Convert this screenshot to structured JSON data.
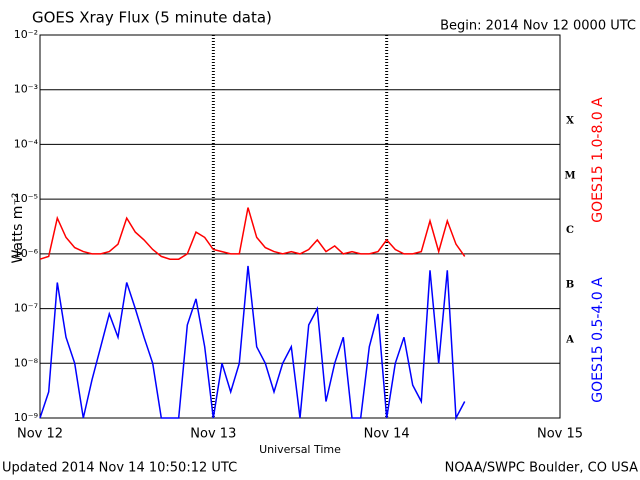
{
  "chart_data": {
    "type": "line",
    "title": "GOES Xray Flux (5 minute data)",
    "subtitle": "Begin:  2014 Nov 12 0000 UTC",
    "y_label": "Watts m⁻²",
    "x_label": "Universal Time",
    "footer_left": "Updated 2014 Nov 14 10:50:12 UTC",
    "footer_right": "NOAA/SWPC Boulder, CO USA",
    "log_y": true,
    "grid": true,
    "xlim": [
      0,
      3
    ],
    "xticks": [
      {
        "value": 0,
        "label": "Nov 12"
      },
      {
        "value": 1,
        "label": "Nov 13"
      },
      {
        "value": 2,
        "label": "Nov 14"
      },
      {
        "value": 3,
        "label": "Nov 15"
      }
    ],
    "ylim": [
      1e-09,
      0.01
    ],
    "yticks": [
      {
        "value": 1e-09,
        "label": "10⁻⁹"
      },
      {
        "value": 1e-08,
        "label": "10⁻⁸"
      },
      {
        "value": 1e-07,
        "label": "10⁻⁷"
      },
      {
        "value": 1e-06,
        "label": "10⁻⁶"
      },
      {
        "value": 1e-05,
        "label": "10⁻⁵"
      },
      {
        "value": 0.0001,
        "label": "10⁻⁴"
      },
      {
        "value": 0.001,
        "label": "10⁻³"
      },
      {
        "value": 0.01,
        "label": "10⁻²"
      }
    ],
    "flux_classes": [
      {
        "label": "A",
        "value": 1e-08
      },
      {
        "label": "B",
        "value": 1e-07
      },
      {
        "label": "C",
        "value": 1e-06
      },
      {
        "label": "M",
        "value": 1e-05
      },
      {
        "label": "X",
        "value": 0.0001
      }
    ],
    "x": [
      0,
      0.05,
      0.1,
      0.15,
      0.2,
      0.25,
      0.3,
      0.35,
      0.4,
      0.45,
      0.5,
      0.55,
      0.6,
      0.65,
      0.7,
      0.75,
      0.8,
      0.85,
      0.9,
      0.95,
      1,
      1.05,
      1.1,
      1.15,
      1.2,
      1.25,
      1.3,
      1.35,
      1.4,
      1.45,
      1.5,
      1.55,
      1.6,
      1.65,
      1.7,
      1.75,
      1.8,
      1.85,
      1.9,
      1.95,
      2,
      2.05,
      2.1,
      2.15,
      2.2,
      2.25,
      2.3,
      2.35,
      2.4,
      2.45
    ],
    "series": [
      {
        "name": "GOES15 1.0-8.0 A",
        "color": "#ff0000",
        "values": [
          8e-07,
          9e-07,
          4.5e-06,
          2e-06,
          1.3e-06,
          1.1e-06,
          1e-06,
          1e-06,
          1.1e-06,
          1.5e-06,
          4.5e-06,
          2.5e-06,
          1.8e-06,
          1.2e-06,
          9e-07,
          8e-07,
          8e-07,
          1e-06,
          2.5e-06,
          2e-06,
          1.2e-06,
          1.1e-06,
          1e-06,
          1e-06,
          7e-06,
          2e-06,
          1.3e-06,
          1.1e-06,
          1e-06,
          1.1e-06,
          1e-06,
          1.2e-06,
          1.8e-06,
          1.1e-06,
          1.4e-06,
          1e-06,
          1.1e-06,
          1e-06,
          1e-06,
          1.1e-06,
          1.8e-06,
          1.2e-06,
          1e-06,
          1e-06,
          1.1e-06,
          4e-06,
          1.1e-06,
          4e-06,
          1.5e-06,
          9e-07
        ]
      },
      {
        "name": "GOES15 0.5-4.0 A",
        "color": "#0000ff",
        "values": [
          1e-09,
          3e-09,
          3e-07,
          3e-08,
          1e-08,
          1e-09,
          5e-09,
          2e-08,
          8e-08,
          3e-08,
          3e-07,
          1e-07,
          3e-08,
          1e-08,
          1e-09,
          1e-09,
          1e-09,
          5e-08,
          1.5e-07,
          2e-08,
          1e-09,
          1e-08,
          3e-09,
          1e-08,
          6e-07,
          2e-08,
          1e-08,
          3e-09,
          1e-08,
          2e-08,
          1e-09,
          5e-08,
          1e-07,
          2e-09,
          1e-08,
          3e-08,
          1e-09,
          1e-09,
          2e-08,
          8e-08,
          1e-09,
          1e-08,
          3e-08,
          4e-09,
          2e-09,
          5e-07,
          1e-08,
          5e-07,
          1e-09,
          2e-09
        ]
      }
    ]
  }
}
